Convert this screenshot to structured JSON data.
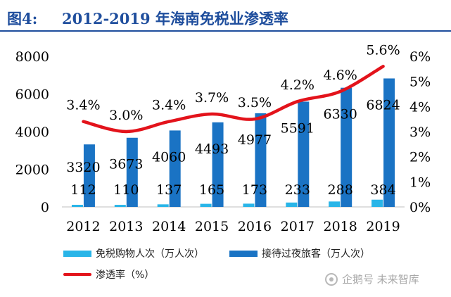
{
  "header": {
    "figure_label": "图4:",
    "title": "2012-2019 年海南免税业渗透率"
  },
  "legend": {
    "series1": "免税购物人次（万人次）",
    "series2": "接待过夜旅客（万人次）",
    "series3": "渗透率（%）"
  },
  "watermark": "企鹅号 未来智库",
  "chart_data": {
    "type": "bar",
    "categories": [
      "2012",
      "2013",
      "2014",
      "2015",
      "2016",
      "2017",
      "2018",
      "2019"
    ],
    "series": [
      {
        "name": "免税购物人次（万人次）",
        "type": "bar",
        "axis": "left",
        "color": "#29b5e8",
        "values": [
          112,
          110,
          137,
          165,
          173,
          233,
          288,
          384
        ],
        "labels": [
          "112",
          "110",
          "137",
          "165",
          "173",
          "233",
          "288",
          "384"
        ]
      },
      {
        "name": "接待过夜旅客（万人次）",
        "type": "bar",
        "axis": "left",
        "color": "#1a73c4",
        "values": [
          3320,
          3673,
          4060,
          4493,
          4977,
          5591,
          6330,
          6824
        ],
        "labels": [
          "3320",
          "3673",
          "4060",
          "4493",
          "4977",
          "5591",
          "6330",
          "6824"
        ]
      },
      {
        "name": "渗透率（%）",
        "type": "line",
        "axis": "right",
        "color": "#e3131b",
        "values": [
          3.4,
          3.0,
          3.4,
          3.7,
          3.5,
          4.2,
          4.6,
          5.6
        ],
        "labels": [
          "3.4%",
          "3.0%",
          "3.4%",
          "3.7%",
          "3.5%",
          "4.2%",
          "4.6%",
          "5.6%"
        ]
      }
    ],
    "y_left": {
      "ticks": [
        "0",
        "2000",
        "4000",
        "6000",
        "8000"
      ],
      "ylim": [
        0,
        8000
      ]
    },
    "y_right": {
      "ticks": [
        "0%",
        "1%",
        "2%",
        "3%",
        "4%",
        "5%",
        "6%"
      ],
      "ylim": [
        0,
        6
      ]
    },
    "legend_position": "bottom",
    "grid": false
  }
}
